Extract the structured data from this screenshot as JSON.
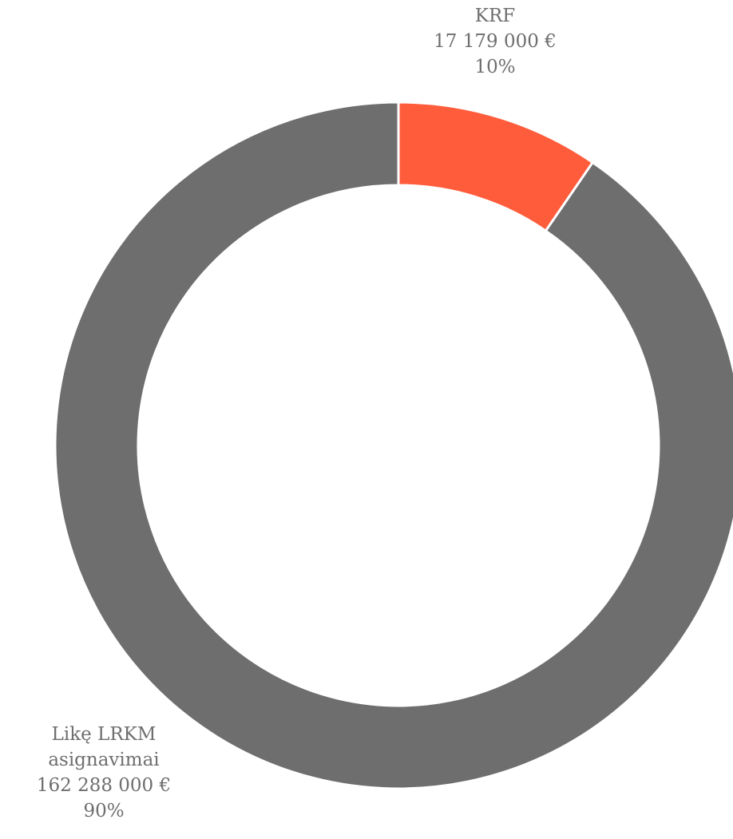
{
  "chart_data": {
    "type": "pie",
    "donut": true,
    "start_angle_deg": 0,
    "direction": "clockwise",
    "slices": [
      {
        "label_lines": [
          "KRF"
        ],
        "value": 17179000,
        "value_text": "17 179 000 €",
        "percent": 10,
        "percent_text": "10%",
        "color": "#ff5c3c"
      },
      {
        "label_lines": [
          "Likę LRKM",
          "asignavimai"
        ],
        "value": 162288000,
        "value_text": "162 288 000 €",
        "percent": 90,
        "percent_text": "90%",
        "color": "#6e6e6e"
      }
    ],
    "label_color": "#6e6e6e",
    "separator_color": "#ffffff"
  }
}
